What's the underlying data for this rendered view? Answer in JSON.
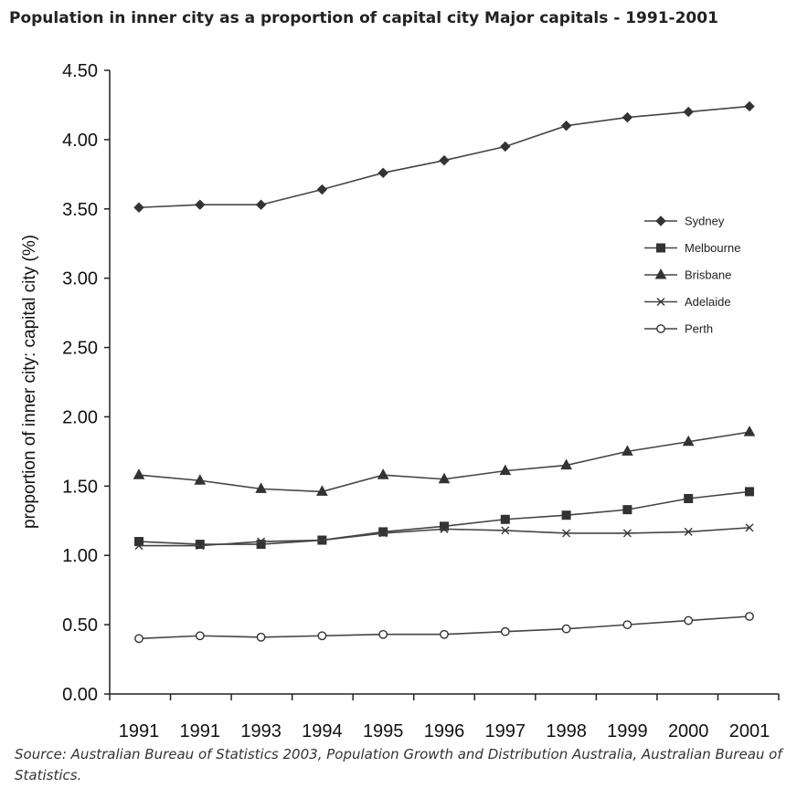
{
  "title": "Population in inner city as a proportion of capital city Major capitals - 1991-2001",
  "source": "Source: Australian Bureau of Statistics 2003, Population Growth and Distribution Australia, Australian Bureau of Statistics.",
  "chart_data": {
    "type": "line",
    "title": "Population in inner city as a proportion of capital city Major capitals - 1991-2001",
    "xlabel": "",
    "ylabel": "proportion of inner city: capital city (%)",
    "categories": [
      "1991",
      "1991",
      "1993",
      "1994",
      "1995",
      "1996",
      "1997",
      "1998",
      "1999",
      "2000",
      "2001"
    ],
    "ylim": [
      0,
      4.5
    ],
    "yticks": [
      "0.00",
      "0.50",
      "1.00",
      "1.50",
      "2.00",
      "2.50",
      "3.00",
      "3.50",
      "4.00",
      "4.50"
    ],
    "legend_position": "right",
    "series": [
      {
        "name": "Sydney",
        "marker": "diamond",
        "values": [
          3.51,
          3.53,
          3.53,
          3.64,
          3.76,
          3.85,
          3.95,
          4.1,
          4.16,
          4.2,
          4.24
        ]
      },
      {
        "name": "Melbourne",
        "marker": "square",
        "values": [
          1.1,
          1.08,
          1.08,
          1.11,
          1.17,
          1.21,
          1.26,
          1.29,
          1.33,
          1.41,
          1.46
        ]
      },
      {
        "name": "Brisbane",
        "marker": "triangle",
        "values": [
          1.58,
          1.54,
          1.48,
          1.46,
          1.58,
          1.55,
          1.61,
          1.65,
          1.75,
          1.82,
          1.89
        ]
      },
      {
        "name": "Adelaide",
        "marker": "x",
        "values": [
          1.07,
          1.07,
          1.1,
          1.11,
          1.16,
          1.19,
          1.18,
          1.16,
          1.16,
          1.17,
          1.2
        ]
      },
      {
        "name": "Perth",
        "marker": "circle",
        "values": [
          0.4,
          0.42,
          0.41,
          0.42,
          0.43,
          0.43,
          0.45,
          0.47,
          0.5,
          0.53,
          0.56
        ]
      }
    ]
  }
}
